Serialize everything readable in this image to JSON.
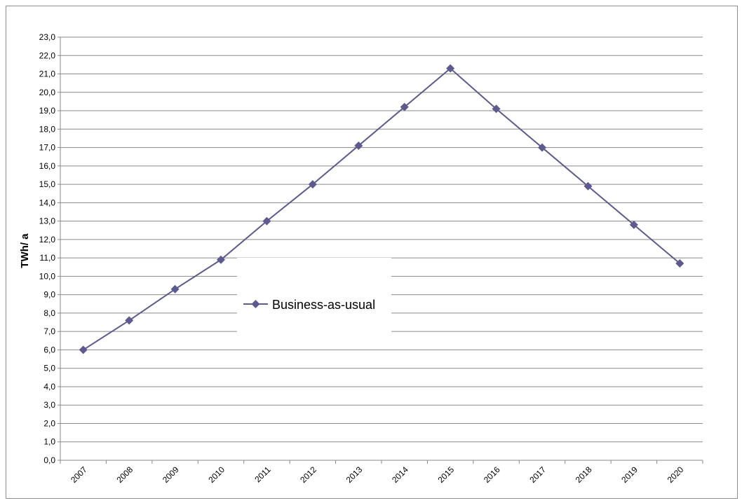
{
  "chart_data": {
    "type": "line",
    "categories": [
      "2007",
      "2008",
      "2009",
      "2010",
      "2011",
      "2012",
      "2013",
      "2014",
      "2015",
      "2016",
      "2017",
      "2018",
      "2019",
      "2020"
    ],
    "series": [
      {
        "name": "Business-as-usual",
        "color": "#5c5a8e",
        "marker": "diamond",
        "values": [
          6.0,
          7.6,
          9.3,
          10.9,
          13.0,
          15.0,
          17.1,
          19.2,
          21.3,
          19.1,
          17.0,
          14.9,
          12.8,
          10.7
        ]
      }
    ],
    "ylabel": "TWh/ a",
    "xlabel": "",
    "title": "",
    "ylim": [
      0,
      23
    ],
    "yticks": [
      "0,0",
      "1,0",
      "2,0",
      "3,0",
      "4,0",
      "5,0",
      "6,0",
      "7,0",
      "8,0",
      "9,0",
      "10,0",
      "11,0",
      "12,0",
      "13,0",
      "14,0",
      "15,0",
      "16,0",
      "17,0",
      "18,0",
      "19,0",
      "20,0",
      "21,0",
      "22,0",
      "23,0"
    ],
    "grid": true,
    "legend_position": "center"
  }
}
